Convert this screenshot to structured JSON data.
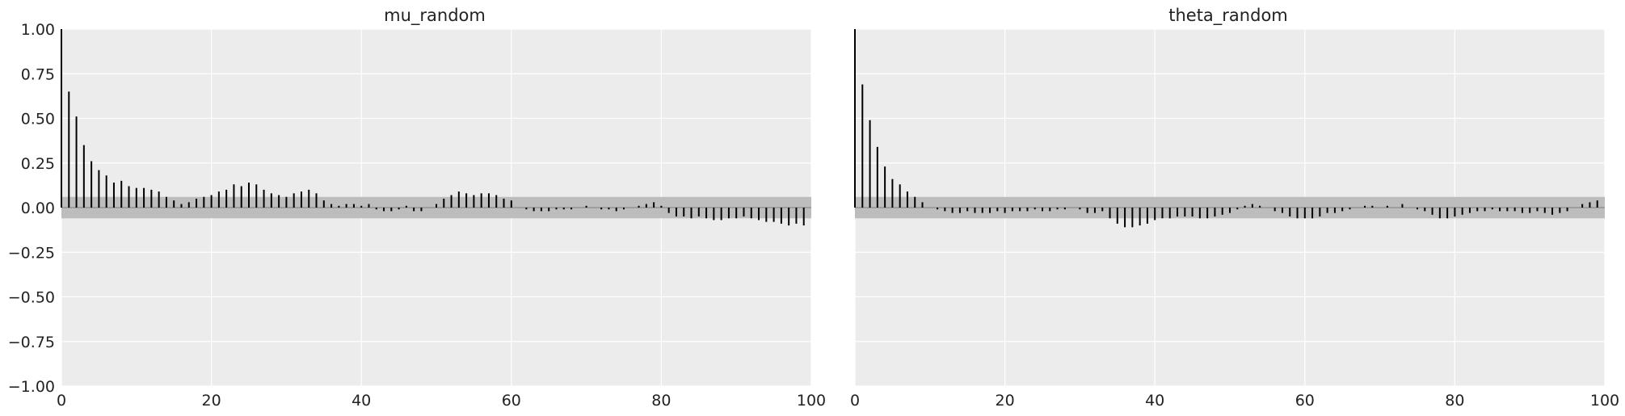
{
  "chart_data": [
    {
      "type": "bar",
      "title": "mu_random",
      "xlabel": "",
      "ylabel": "",
      "xlim": [
        0,
        100
      ],
      "ylim": [
        -1,
        1
      ],
      "x_ticks": [
        "0",
        "20",
        "40",
        "60",
        "80",
        "100"
      ],
      "y_ticks": [
        "1.00",
        "0.75",
        "0.50",
        "0.25",
        "0.00",
        "−0.25",
        "−0.50",
        "−0.75",
        "−1.00"
      ],
      "confidence_band": [
        -0.06,
        0.06
      ],
      "grid": true,
      "lags": [
        0,
        1,
        2,
        3,
        4,
        5,
        6,
        7,
        8,
        9,
        10,
        11,
        12,
        13,
        14,
        15,
        16,
        17,
        18,
        19,
        20,
        21,
        22,
        23,
        24,
        25,
        26,
        27,
        28,
        29,
        30,
        31,
        32,
        33,
        34,
        35,
        36,
        37,
        38,
        39,
        40,
        41,
        42,
        43,
        44,
        45,
        46,
        47,
        48,
        49,
        50,
        51,
        52,
        53,
        54,
        55,
        56,
        57,
        58,
        59,
        60,
        61,
        62,
        63,
        64,
        65,
        66,
        67,
        68,
        69,
        70,
        71,
        72,
        73,
        74,
        75,
        76,
        77,
        78,
        79,
        80,
        81,
        82,
        83,
        84,
        85,
        86,
        87,
        88,
        89,
        90,
        91,
        92,
        93,
        94,
        95,
        96,
        97,
        98,
        99
      ],
      "values": [
        1.0,
        0.65,
        0.51,
        0.35,
        0.26,
        0.21,
        0.18,
        0.14,
        0.15,
        0.12,
        0.11,
        0.11,
        0.1,
        0.09,
        0.06,
        0.04,
        0.02,
        0.03,
        0.05,
        0.06,
        0.07,
        0.09,
        0.1,
        0.13,
        0.12,
        0.14,
        0.13,
        0.1,
        0.08,
        0.07,
        0.06,
        0.08,
        0.09,
        0.1,
        0.08,
        0.04,
        0.02,
        0.01,
        0.02,
        0.02,
        0.01,
        0.02,
        -0.01,
        -0.02,
        -0.02,
        -0.01,
        0.01,
        -0.02,
        -0.02,
        0.0,
        0.02,
        0.05,
        0.07,
        0.09,
        0.08,
        0.07,
        0.08,
        0.08,
        0.07,
        0.05,
        0.04,
        0.0,
        -0.01,
        -0.02,
        -0.02,
        -0.02,
        -0.01,
        -0.01,
        -0.01,
        0.0,
        0.01,
        0.0,
        -0.01,
        -0.01,
        -0.02,
        -0.01,
        0.0,
        0.01,
        0.02,
        0.03,
        0.01,
        -0.03,
        -0.05,
        -0.05,
        -0.06,
        -0.05,
        -0.06,
        -0.07,
        -0.07,
        -0.06,
        -0.06,
        -0.05,
        -0.06,
        -0.07,
        -0.08,
        -0.08,
        -0.09,
        -0.1,
        -0.09,
        -0.1
      ]
    },
    {
      "type": "bar",
      "title": "theta_random",
      "xlabel": "",
      "ylabel": "",
      "xlim": [
        0,
        100
      ],
      "ylim": [
        -1,
        1
      ],
      "x_ticks": [
        "0",
        "20",
        "40",
        "60",
        "80",
        "100"
      ],
      "y_ticks": [],
      "confidence_band": [
        -0.06,
        0.06
      ],
      "grid": true,
      "lags": [
        0,
        1,
        2,
        3,
        4,
        5,
        6,
        7,
        8,
        9,
        10,
        11,
        12,
        13,
        14,
        15,
        16,
        17,
        18,
        19,
        20,
        21,
        22,
        23,
        24,
        25,
        26,
        27,
        28,
        29,
        30,
        31,
        32,
        33,
        34,
        35,
        36,
        37,
        38,
        39,
        40,
        41,
        42,
        43,
        44,
        45,
        46,
        47,
        48,
        49,
        50,
        51,
        52,
        53,
        54,
        55,
        56,
        57,
        58,
        59,
        60,
        61,
        62,
        63,
        64,
        65,
        66,
        67,
        68,
        69,
        70,
        71,
        72,
        73,
        74,
        75,
        76,
        77,
        78,
        79,
        80,
        81,
        82,
        83,
        84,
        85,
        86,
        87,
        88,
        89,
        90,
        91,
        92,
        93,
        94,
        95,
        96,
        97,
        98,
        99
      ],
      "values": [
        1.0,
        0.69,
        0.49,
        0.34,
        0.23,
        0.16,
        0.13,
        0.09,
        0.06,
        0.03,
        0.0,
        -0.01,
        -0.02,
        -0.03,
        -0.03,
        -0.02,
        -0.03,
        -0.03,
        -0.03,
        -0.02,
        -0.03,
        -0.02,
        -0.02,
        -0.02,
        -0.01,
        -0.02,
        -0.02,
        -0.01,
        -0.01,
        0.0,
        -0.01,
        -0.03,
        -0.03,
        -0.02,
        -0.06,
        -0.09,
        -0.11,
        -0.11,
        -0.1,
        -0.09,
        -0.07,
        -0.06,
        -0.06,
        -0.05,
        -0.05,
        -0.05,
        -0.06,
        -0.06,
        -0.05,
        -0.04,
        -0.03,
        -0.01,
        0.01,
        0.02,
        0.01,
        0.0,
        -0.02,
        -0.03,
        -0.05,
        -0.06,
        -0.06,
        -0.06,
        -0.05,
        -0.03,
        -0.03,
        -0.02,
        -0.01,
        0.0,
        0.01,
        0.01,
        0.0,
        0.01,
        0.0,
        0.02,
        0.0,
        -0.01,
        -0.02,
        -0.04,
        -0.06,
        -0.06,
        -0.05,
        -0.04,
        -0.03,
        -0.02,
        -0.02,
        -0.01,
        -0.02,
        -0.02,
        -0.02,
        -0.03,
        -0.03,
        -0.02,
        -0.03,
        -0.04,
        -0.03,
        -0.02,
        0.0,
        0.02,
        0.03,
        0.04
      ]
    }
  ]
}
